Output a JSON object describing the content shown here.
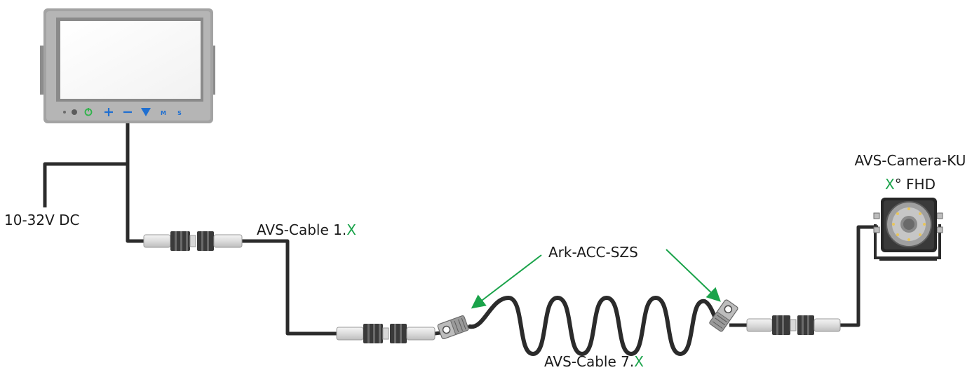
{
  "labels": {
    "power": "10-32V DC",
    "cable1_prefix": "AVS-Cable 1.",
    "cable1_suffix": "X",
    "cable7_prefix": "AVS-Cable 7.",
    "cable7_suffix": "X",
    "accessory": "Ark-ACC-SZS",
    "camera_line1": "AVS-Camera-KU",
    "camera_line2_var": "X",
    "camera_line2_rest": "° FHD"
  },
  "monitor_buttons": [
    "M",
    "S"
  ],
  "colors": {
    "cable": "#2b2b2b",
    "accent_green": "#1aa34a",
    "monitor_frame": "#9a9a9a",
    "button_blue": "#1f6fd1",
    "power_button": "#2fb34a"
  },
  "icons": [
    "monitor-icon",
    "camera-icon",
    "connector-icon",
    "spiral-cable-icon",
    "pointer-arrow-icon"
  ]
}
